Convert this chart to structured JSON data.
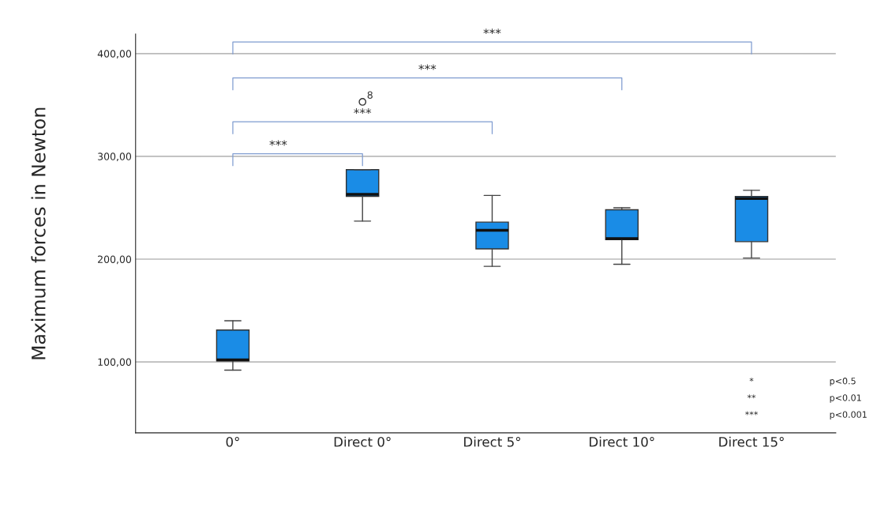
{
  "chart_data": {
    "type": "box",
    "ylabel": "Maximum forces in Newton",
    "categories": [
      "0°",
      "Direct 0°",
      "Direct 5°",
      "Direct 10°",
      "Direct 15°"
    ],
    "boxes": [
      {
        "low": 92,
        "q1": 101,
        "median": 102,
        "q3": 131,
        "high": 140
      },
      {
        "low": 237,
        "q1": 261,
        "median": 263,
        "q3": 287,
        "high": 287,
        "outliers": [
          353
        ]
      },
      {
        "low": 193,
        "q1": 210,
        "median": 228,
        "q3": 236,
        "high": 262
      },
      {
        "low": 195,
        "q1": 219,
        "median": 220,
        "q3": 248,
        "high": 250
      },
      {
        "low": 201,
        "q1": 217,
        "median": 259,
        "q3": 261,
        "high": 267
      }
    ],
    "color": "#1a8ce6",
    "ylim": [
      31,
      419
    ],
    "yticks": [
      {
        "value": 100,
        "label": "100,00"
      },
      {
        "value": 200,
        "label": "200,00"
      },
      {
        "value": 300,
        "label": "300,00"
      },
      {
        "value": 400,
        "label": "400,00"
      }
    ],
    "grid": "y",
    "annotations": [
      "***",
      "***",
      "***",
      "***",
      "8",
      "*",
      "**",
      "***",
      "p<0.5",
      "p<0.01",
      "p<0.001"
    ]
  }
}
